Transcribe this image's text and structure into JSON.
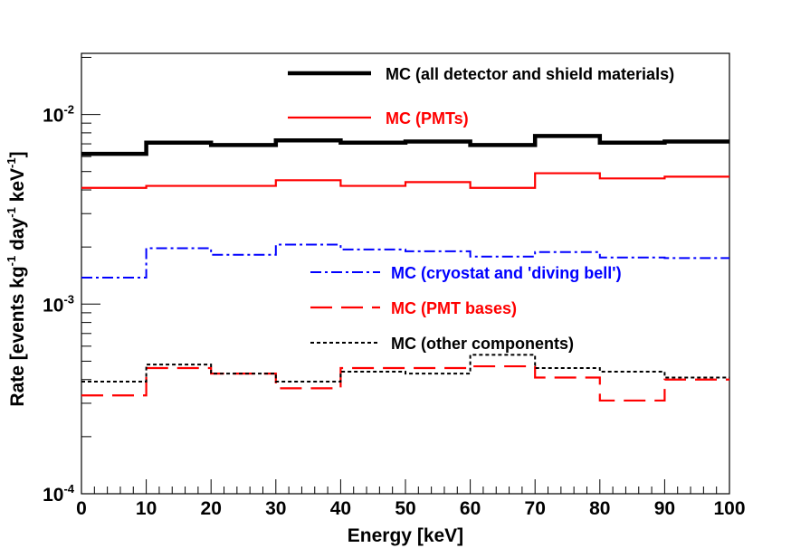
{
  "chart_data": {
    "type": "line",
    "title": "",
    "xlabel": "Energy [keV]",
    "ylabel": {
      "parts": [
        "Rate [events kg",
        "-1",
        " day",
        "-1",
        " keV",
        "-1",
        "]"
      ]
    },
    "xlim": [
      0,
      100
    ],
    "ylim": [
      0.0001,
      0.021
    ],
    "yscale": "log",
    "grid": false,
    "x_tick_labels": [
      "0",
      "10",
      "20",
      "30",
      "40",
      "50",
      "60",
      "70",
      "80",
      "90",
      "100"
    ],
    "y_tick_labels": [
      {
        "base": "10",
        "exp": "-4",
        "value": 0.0001
      },
      {
        "base": "10",
        "exp": "-3",
        "value": 0.001
      },
      {
        "base": "10",
        "exp": "-2",
        "value": 0.01
      }
    ],
    "bin_edges": [
      0,
      10,
      20,
      30,
      40,
      50,
      60,
      70,
      80,
      90,
      100
    ],
    "series": [
      {
        "name": "MC (all detector and shield materials)",
        "color": "#000000",
        "style": "solid-thick",
        "values": [
          0.0062,
          0.0071,
          0.0069,
          0.0073,
          0.0071,
          0.0072,
          0.0069,
          0.0077,
          0.0071,
          0.0072
        ]
      },
      {
        "name": "MC (PMTs)",
        "color": "#ff0000",
        "style": "solid",
        "values": [
          0.0041,
          0.0042,
          0.0042,
          0.0045,
          0.0042,
          0.0044,
          0.0041,
          0.0049,
          0.0046,
          0.0047
        ]
      },
      {
        "name": "MC (cryostat and 'diving bell')",
        "color": "#0000ff",
        "style": "dash-dot",
        "values": [
          0.00138,
          0.00197,
          0.00182,
          0.00206,
          0.00194,
          0.0019,
          0.00178,
          0.00188,
          0.00176,
          0.00175
        ]
      },
      {
        "name": "MC (PMT bases)",
        "color": "#ff0000",
        "style": "long-dash",
        "values": [
          0.00033,
          0.00046,
          0.00043,
          0.00036,
          0.00046,
          0.00046,
          0.00047,
          0.00041,
          0.00031,
          0.0004
        ]
      },
      {
        "name": "MC (other components)",
        "color": "#000000",
        "style": "dotted",
        "values": [
          0.00039,
          0.00048,
          0.00043,
          0.00039,
          0.00044,
          0.00043,
          0.00054,
          0.00046,
          0.00044,
          0.00041
        ]
      }
    ]
  }
}
